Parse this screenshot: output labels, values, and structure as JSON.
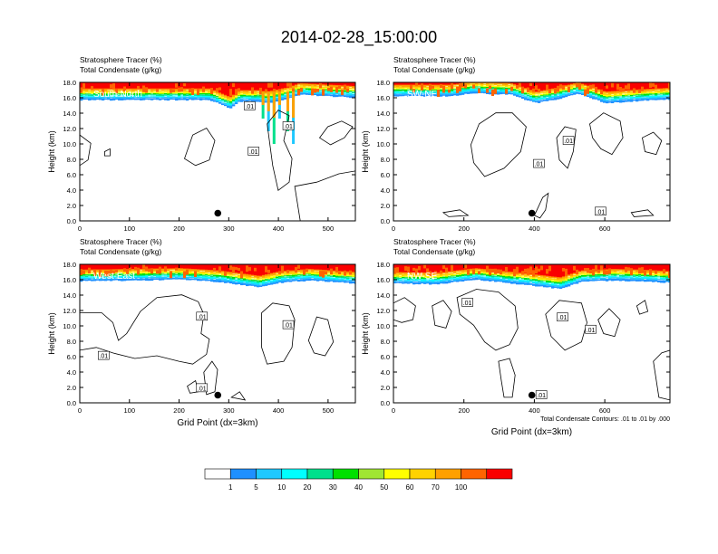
{
  "figure": {
    "title": "2014-02-28_15:00:00",
    "contour_info": "Total Condensate Contours: .01 to .01 by .000"
  },
  "colorbar": {
    "levels": [
      "1",
      "5",
      "10",
      "20",
      "30",
      "40",
      "50",
      "60",
      "70",
      "100"
    ],
    "colors": [
      "#ffffff",
      "#1e90ff",
      "#1ec8ff",
      "#00ffff",
      "#00e08c",
      "#00e000",
      "#a0e632",
      "#ffff00",
      "#ffd200",
      "#ffa000",
      "#ff6400",
      "#fa0000"
    ]
  },
  "chart_data": [
    {
      "type": "heatmap",
      "panel_label": "South-North",
      "title_line1": "Stratosphere Tracer   (%)",
      "title_line2": "Total Condensate   (g/kg)",
      "ylabel": "Height (km)",
      "xlabel": "",
      "xlim": [
        0,
        555
      ],
      "ylim": [
        0,
        18
      ],
      "xticks": [
        "0",
        "100",
        "200",
        "300",
        "400",
        "500"
      ],
      "yticks": [
        "0.0",
        "2.0",
        "4.0",
        "6.0",
        "8.0",
        "10.0",
        "12.0",
        "14.0",
        "16.0",
        "18.0"
      ],
      "marker": {
        "x": 278,
        "y": 1.0
      },
      "contour_labels": [
        {
          "text": ".01",
          "x": 342,
          "y": 14.9
        },
        {
          "text": ".01",
          "x": 420,
          "y": 12.3
        },
        {
          "text": ".01",
          "x": 350,
          "y": 9.0
        }
      ],
      "tropopause": [
        [
          0,
          15.7
        ],
        [
          260,
          15.7
        ],
        [
          300,
          14.6
        ],
        [
          320,
          15.5
        ],
        [
          355,
          15.5
        ],
        [
          375,
          15.3
        ],
        [
          420,
          15.9
        ],
        [
          440,
          16.4
        ],
        [
          555,
          16.0
        ]
      ]
    },
    {
      "type": "heatmap",
      "panel_label": "SW-NE",
      "title_line1": "Stratosphere Tracer   (%)",
      "title_line2": "Total Condensate   (g/kg)",
      "ylabel": "Height (km)",
      "xlabel": "",
      "xlim": [
        0,
        785
      ],
      "ylim": [
        0,
        18
      ],
      "xticks": [
        "0",
        "200",
        "400",
        "600"
      ],
      "yticks": [
        "0.0",
        "2.0",
        "4.0",
        "6.0",
        "8.0",
        "10.0",
        "12.0",
        "14.0",
        "16.0",
        "18.0"
      ],
      "marker": {
        "x": 393,
        "y": 1.0
      },
      "contour_labels": [
        {
          "text": ".01",
          "x": 497,
          "y": 10.4
        },
        {
          "text": ".01",
          "x": 413,
          "y": 7.4
        },
        {
          "text": ".01",
          "x": 588,
          "y": 1.2
        }
      ],
      "tropopause": [
        [
          0,
          16.2
        ],
        [
          160,
          16.2
        ],
        [
          220,
          16.6
        ],
        [
          330,
          16.4
        ],
        [
          400,
          15.3
        ],
        [
          460,
          15.8
        ],
        [
          520,
          16.5
        ],
        [
          600,
          15.3
        ],
        [
          700,
          15.6
        ],
        [
          785,
          15.8
        ]
      ]
    },
    {
      "type": "heatmap",
      "panel_label": "West-East",
      "title_line1": "Stratosphere Tracer   (%)",
      "title_line2": "Total Condensate   (g/kg)",
      "ylabel": "Height (km)",
      "xlabel": "Grid Point (dx=3km)",
      "xlim": [
        0,
        555
      ],
      "ylim": [
        0,
        18
      ],
      "xticks": [
        "0",
        "100",
        "200",
        "300",
        "400",
        "500"
      ],
      "yticks": [
        "0.0",
        "2.0",
        "4.0",
        "6.0",
        "8.0",
        "10.0",
        "12.0",
        "14.0",
        "16.0",
        "18.0"
      ],
      "marker": {
        "x": 278,
        "y": 1.0
      },
      "contour_labels": [
        {
          "text": ".01",
          "x": 246,
          "y": 11.2
        },
        {
          "text": ".01",
          "x": 420,
          "y": 10.1
        },
        {
          "text": ".01",
          "x": 48,
          "y": 6.1
        },
        {
          "text": ".01",
          "x": 246,
          "y": 1.9
        }
      ],
      "tropopause": [
        [
          0,
          15.8
        ],
        [
          200,
          16.0
        ],
        [
          280,
          15.7
        ],
        [
          360,
          15.0
        ],
        [
          400,
          15.6
        ],
        [
          460,
          15.9
        ],
        [
          555,
          15.5
        ]
      ]
    },
    {
      "type": "heatmap",
      "panel_label": "NW-SE",
      "title_line1": "Stratosphere Tracer   (%)",
      "title_line2": "Total Condensate   (g/kg)",
      "ylabel": "Height (km)",
      "xlabel": "Grid Point (dx=3km)",
      "xlim": [
        0,
        785
      ],
      "ylim": [
        0,
        18
      ],
      "xticks": [
        "0",
        "200",
        "400",
        "600"
      ],
      "yticks": [
        "0.0",
        "2.0",
        "4.0",
        "6.0",
        "8.0",
        "10.0",
        "12.0",
        "14.0",
        "16.0",
        "18.0"
      ],
      "marker": {
        "x": 393,
        "y": 1.0
      },
      "contour_labels": [
        {
          "text": ".01",
          "x": 210,
          "y": 13.0
        },
        {
          "text": ".01",
          "x": 480,
          "y": 11.1
        },
        {
          "text": ".01",
          "x": 560,
          "y": 9.5
        },
        {
          "text": ".01",
          "x": 420,
          "y": 1.0
        }
      ],
      "tropopause": [
        [
          0,
          15.5
        ],
        [
          120,
          15.4
        ],
        [
          230,
          16.0
        ],
        [
          380,
          15.3
        ],
        [
          470,
          14.8
        ],
        [
          530,
          15.7
        ],
        [
          620,
          15.9
        ],
        [
          700,
          15.8
        ],
        [
          785,
          15.6
        ]
      ]
    }
  ]
}
